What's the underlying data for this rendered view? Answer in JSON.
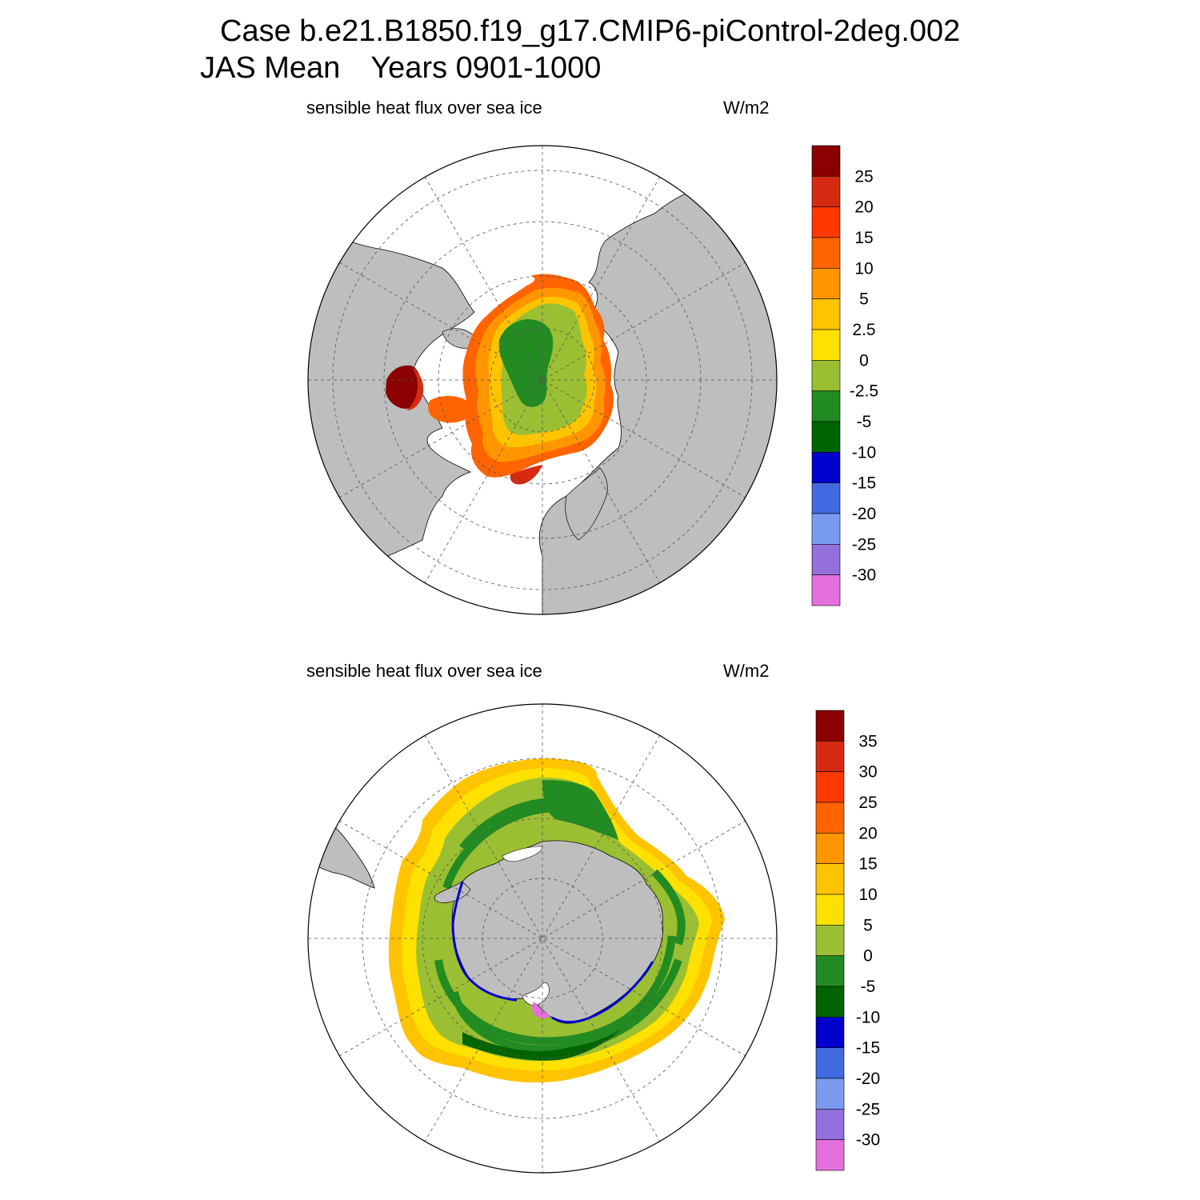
{
  "header": {
    "line1": "Case b.e21.B1850.f19_g17.CMIP6-piControl-2deg.002",
    "line2_season": "JAS Mean",
    "line2_years": "Years 0901-1000"
  },
  "panels": [
    {
      "id": "north",
      "hemisphere": "Arctic (north polar stereographic)",
      "label": "sensible heat flux over sea ice",
      "units": "W/m2",
      "colorbar": {
        "labels": [
          "25",
          "20",
          "15",
          "10",
          "5",
          "2.5",
          "0",
          "-2.5",
          "-5",
          "-10",
          "-15",
          "-20",
          "-25",
          "-30"
        ],
        "colors": [
          "#8b0000",
          "#d52b12",
          "#ff3800",
          "#ff6400",
          "#ff9600",
          "#ffc400",
          "#ffe100",
          "#9bbf33",
          "#228b22",
          "#006400",
          "#0000cd",
          "#4169e1",
          "#7a9cf0",
          "#9370db",
          "#e36fdc"
        ]
      }
    },
    {
      "id": "south",
      "hemisphere": "Antarctic (south polar stereographic)",
      "label": "sensible heat flux over sea ice",
      "units": "W/m2",
      "colorbar": {
        "labels": [
          "35",
          "30",
          "25",
          "20",
          "15",
          "10",
          "5",
          "0",
          "-5",
          "-10",
          "-15",
          "-20",
          "-25",
          "-30"
        ],
        "colors": [
          "#8b0000",
          "#d52b12",
          "#ff3800",
          "#ff6400",
          "#ff9600",
          "#ffc400",
          "#ffe100",
          "#9bbf33",
          "#228b22",
          "#006400",
          "#0000cd",
          "#4169e1",
          "#7a9cf0",
          "#9370db",
          "#e36fdc"
        ]
      }
    }
  ],
  "colors": {
    "land": "#bebebe",
    "ocean": "#ffffff",
    "grid": "#555555"
  }
}
